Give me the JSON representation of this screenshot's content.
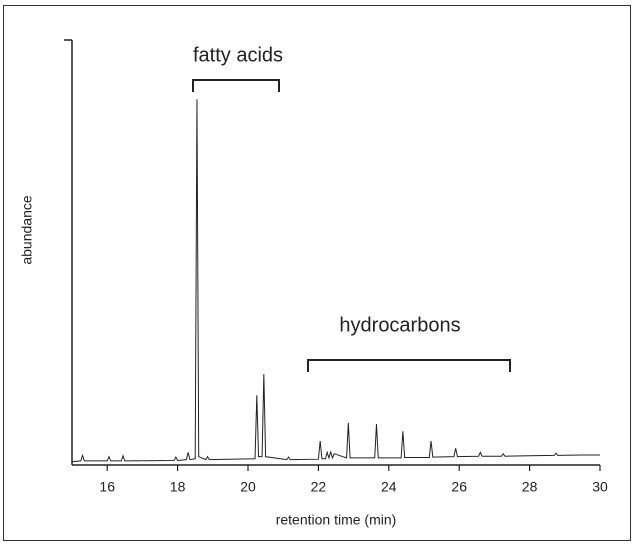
{
  "chart_data": {
    "type": "line",
    "x_label": "retention time (min)",
    "y_label": "abundance",
    "annotations": [
      "fatty acids",
      "hydrocarbons"
    ],
    "xlim": [
      15,
      30
    ],
    "xticks": [
      16,
      18,
      20,
      22,
      24,
      26,
      28,
      30
    ],
    "ylim": [
      0,
      100
    ],
    "series": [
      {
        "color": "#222222",
        "x": [
          15.0,
          15.25,
          15.3,
          15.35,
          16.0,
          16.05,
          16.1,
          16.4,
          16.45,
          16.5,
          17.9,
          17.95,
          18.0,
          18.25,
          18.3,
          18.35,
          18.5,
          18.55,
          18.6,
          18.8,
          18.85,
          18.9,
          20.2,
          20.25,
          20.3,
          20.4,
          20.45,
          20.5,
          21.1,
          21.15,
          21.2,
          22.0,
          22.05,
          22.1,
          22.2,
          22.25,
          22.3,
          22.35,
          22.4,
          22.45,
          22.8,
          22.85,
          22.9,
          23.6,
          23.65,
          23.7,
          24.35,
          24.4,
          24.45,
          25.15,
          25.2,
          25.25,
          25.85,
          25.9,
          25.95,
          26.55,
          26.6,
          26.65,
          27.2,
          27.25,
          27.3,
          28.0,
          28.7,
          28.75,
          28.8,
          29.5,
          30.0
        ],
        "values": [
          0.3,
          0.5,
          1.8,
          0.5,
          0.5,
          1.5,
          0.5,
          0.5,
          1.7,
          0.5,
          0.6,
          1.4,
          0.6,
          0.8,
          2.5,
          0.8,
          1.0,
          86,
          1.5,
          0.8,
          1.5,
          0.8,
          1.0,
          16,
          1.5,
          1.5,
          21,
          1.5,
          0.8,
          1.4,
          0.8,
          0.9,
          5.2,
          1.0,
          1.0,
          2.5,
          1.2,
          2.6,
          1.2,
          2.2,
          1.2,
          9.5,
          1.2,
          1.2,
          9.2,
          1.2,
          1.2,
          7.5,
          1.3,
          1.3,
          5.2,
          1.4,
          1.5,
          3.5,
          1.5,
          1.6,
          2.5,
          1.6,
          1.6,
          2.2,
          1.6,
          1.7,
          1.8,
          2.3,
          1.8,
          1.9,
          1.9
        ]
      }
    ]
  }
}
